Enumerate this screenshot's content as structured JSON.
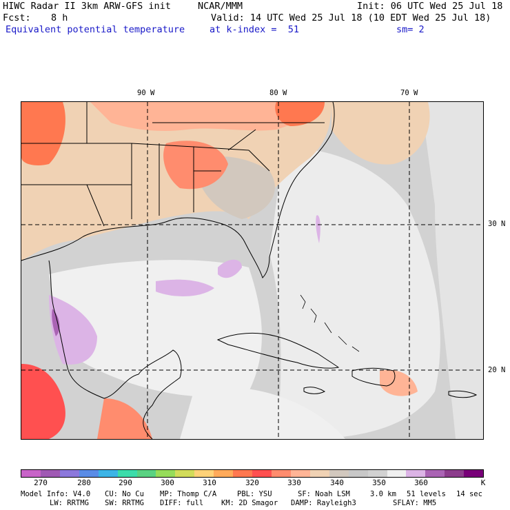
{
  "header": {
    "left1": "HIWC Radar II 3km ARW-GFS init",
    "center1": "NCAR/MMM",
    "right1": "Init: 06 UTC Wed 25 Jul 18",
    "fcst_label": "Fcst:",
    "fcst_value": "8 h",
    "valid": "Valid: 14 UTC Wed 25 Jul 18 (10 EDT Wed 25 Jul 18)",
    "field": "Equivalent potential temperature",
    "level": "at k-index =  51",
    "smooth": "sm= 2"
  },
  "map": {
    "lon_labels": [
      "90 W",
      "80 W",
      "70 W"
    ],
    "lat_labels": [
      "30 N",
      "20 N"
    ]
  },
  "colorbar": {
    "labels": [
      "270",
      "280",
      "290",
      "300",
      "310",
      "320",
      "330",
      "340",
      "350",
      "360",
      "K"
    ],
    "colors": [
      "#c864c8",
      "#a05ab4",
      "#8c78dc",
      "#5a8ce6",
      "#3cb4e6",
      "#3cdcaa",
      "#5ad282",
      "#96dc5a",
      "#d2dc5a",
      "#ffd278",
      "#ffaa5a",
      "#ff7850",
      "#ff5050",
      "#ff8c6e",
      "#ffb496",
      "#f0d2b4",
      "#d2c8be",
      "#c8c8c8",
      "#d2d2d2",
      "#f0f0f0",
      "#dcb4e6",
      "#aa64b4",
      "#8c3c8c",
      "#780078"
    ]
  },
  "footer": {
    "line1": [
      "Model Info: V4.0",
      "CU: No Cu",
      "MP: Thomp C/A",
      "PBL: YSU",
      "SF: Noah LSM",
      "3.0 km",
      "51 levels",
      "14 sec"
    ],
    "line2": [
      "LW: RRTMG",
      "SW: RRTMG",
      "DIFF: full",
      "KM: 2D Smagor",
      "DAMP: Rayleigh3",
      "SFLAY: MM5"
    ]
  }
}
